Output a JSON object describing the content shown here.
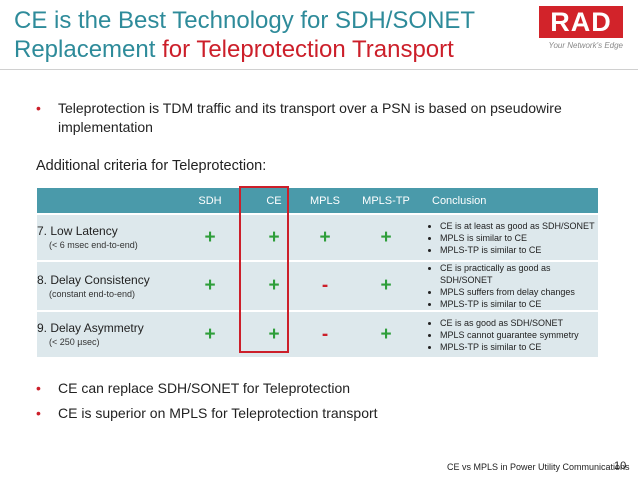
{
  "slide": {
    "title_line1": "CE is the Best Technology for SDH/SONET",
    "title_line2_plain": "Replacement ",
    "title_line2_accent": "for Teleprotection Transport",
    "logo_text": "RAD",
    "logo_tagline": "Your Network's Edge",
    "bullet1": "Teleprotection is TDM traffic and its transport over a PSN is based on pseudowire implementation",
    "criteria_heading": "Additional criteria for Teleprotection:",
    "bullet2": "CE can replace SDH/SONET for Teleprotection",
    "bullet3": "CE is superior on MPLS for Teleprotection transport",
    "footer_text": "CE vs MPLS in Power Utility Communications",
    "page_number": "10"
  },
  "table": {
    "headers": [
      "SDH",
      "CE",
      "MPLS",
      "MPLS-TP",
      "Conclusion"
    ],
    "rows": [
      {
        "criterion": "7. Low Latency",
        "detail": "(< 6 msec end-to-end)",
        "marks": [
          "+",
          "+",
          "+",
          "+"
        ],
        "conclusions": [
          "CE is at least as good as SDH/SONET",
          "MPLS is similar to CE",
          "MPLS-TP is similar to CE"
        ]
      },
      {
        "criterion": "8. Delay Consistency",
        "detail": "(constant end-to-end)",
        "marks": [
          "+",
          "+",
          "-",
          "+"
        ],
        "conclusions": [
          "CE is practically as good as SDH/SONET",
          "MPLS suffers from delay changes",
          "MPLS-TP is similar to CE"
        ]
      },
      {
        "criterion": "9. Delay Asymmetry",
        "detail": "(< 250 µsec)",
        "marks": [
          "+",
          "+",
          "-",
          "+"
        ],
        "conclusions": [
          "CE is as good as SDH/SONET",
          "MPLS cannot guarantee symmetry",
          "MPLS-TP is similar to CE"
        ]
      }
    ]
  },
  "colors": {
    "title": "#2e8b9a",
    "accent": "#cc1f2a",
    "header_bg": "#4a9aaa",
    "row_bg": "#dde8ec",
    "plus": "#2e9e3a",
    "minus": "#cc1f2a"
  }
}
